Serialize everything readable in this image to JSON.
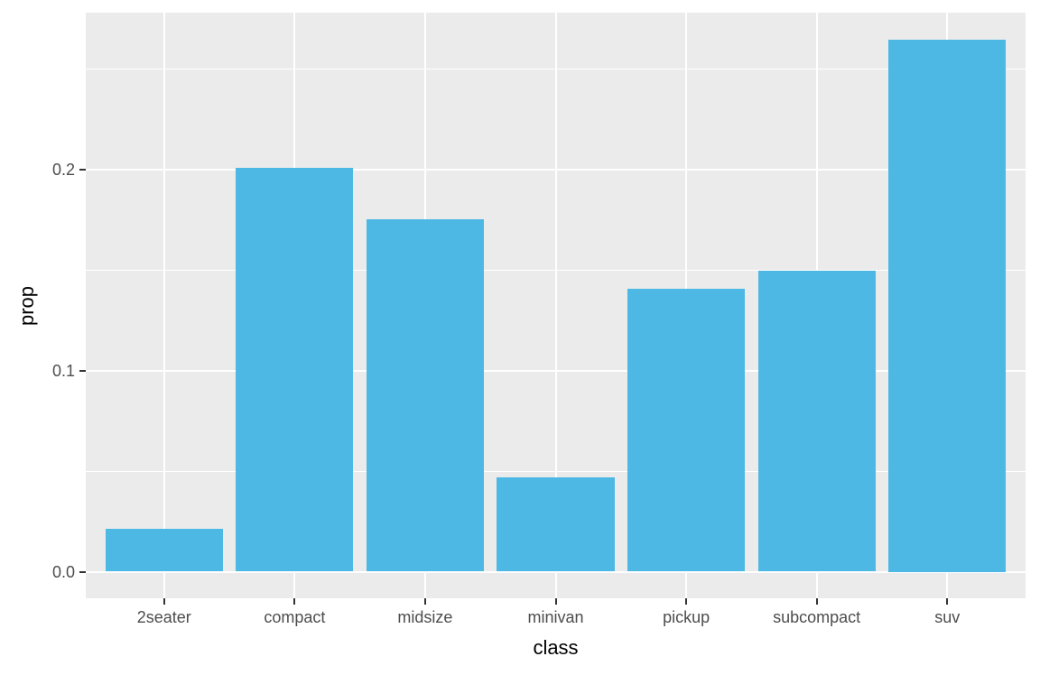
{
  "chart_data": {
    "type": "bar",
    "categories": [
      "2seater",
      "compact",
      "midsize",
      "minivan",
      "pickup",
      "subcompact",
      "suv"
    ],
    "values": [
      0.0214,
      0.2009,
      0.1752,
      0.047,
      0.141,
      0.1496,
      0.265
    ],
    "title": "",
    "xlabel": "class",
    "ylabel": "prop",
    "y_ticks": [
      {
        "label": "0.0",
        "value": 0.0
      },
      {
        "label": "0.1",
        "value": 0.1
      },
      {
        "label": "0.2",
        "value": 0.2
      }
    ],
    "y_minor_ticks": [
      0.05,
      0.15,
      0.25
    ],
    "ylim": [
      -0.01325,
      0.27825
    ],
    "grid": "on",
    "legend_position": "none",
    "colors": {
      "bar_fill": "#4db8e4",
      "panel_background": "#ebebeb",
      "gridline": "#ffffff",
      "tick_label": "#4d4d4d",
      "axis_title": "#000000",
      "tick_mark": "#333333"
    }
  }
}
